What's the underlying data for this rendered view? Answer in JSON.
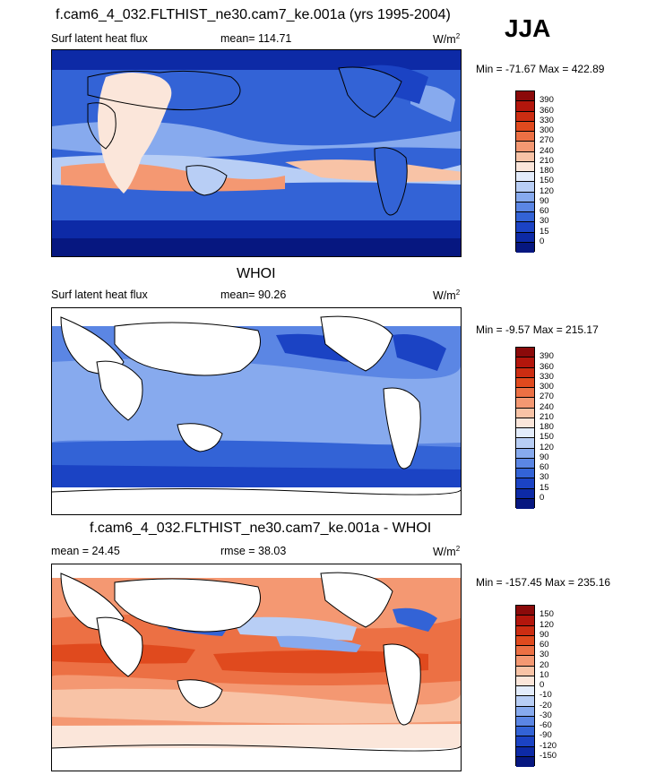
{
  "season": "JJA",
  "panels": [
    {
      "title": "f.cam6_4_032.FLTHIST_ne30.cam7_ke.001a (yrs 1995-2004)",
      "left_label": "Surf latent heat flux",
      "stat_label": "mean= 114.71",
      "units": "W/m",
      "units_sup": "2",
      "minmax": "Min = -71.67 Max = 422.89",
      "colorbar": {
        "levels": [
          "390",
          "360",
          "330",
          "300",
          "270",
          "240",
          "210",
          "180",
          "150",
          "120",
          "90",
          "60",
          "30",
          "15",
          "0"
        ],
        "colors": [
          "#8b0a0a",
          "#b3160c",
          "#cc2d12",
          "#e04a1e",
          "#ec7044",
          "#f49872",
          "#f8c3a6",
          "#fbe6da",
          "#e3ecfb",
          "#b8cef5",
          "#87aaee",
          "#5b86e4",
          "#3363d6",
          "#1b43c4",
          "#0d2aa6",
          "#061780"
        ]
      }
    },
    {
      "title": "WHOI",
      "left_label": "Surf latent heat flux",
      "stat_label": "mean=  90.26",
      "units": "W/m",
      "units_sup": "2",
      "minmax": "Min =  -9.57 Max = 215.17",
      "colorbar": {
        "levels": [
          "390",
          "360",
          "330",
          "300",
          "270",
          "240",
          "210",
          "180",
          "150",
          "120",
          "90",
          "60",
          "30",
          "15",
          "0"
        ],
        "colors": [
          "#8b0a0a",
          "#b3160c",
          "#cc2d12",
          "#e04a1e",
          "#ec7044",
          "#f49872",
          "#f8c3a6",
          "#fbe6da",
          "#e3ecfb",
          "#b8cef5",
          "#87aaee",
          "#5b86e4",
          "#3363d6",
          "#1b43c4",
          "#0d2aa6",
          "#061780"
        ]
      }
    },
    {
      "title": "f.cam6_4_032.FLTHIST_ne30.cam7_ke.001a - WHOI",
      "left_label": "mean =  24.45",
      "stat_label": "rmse =  38.03",
      "units": "W/m",
      "units_sup": "2",
      "minmax": "Min = -157.45 Max = 235.16",
      "colorbar": {
        "levels": [
          "150",
          "120",
          "90",
          "60",
          "30",
          "20",
          "10",
          "0",
          "-10",
          "-20",
          "-30",
          "-60",
          "-90",
          "-120",
          "-150"
        ],
        "colors": [
          "#8b0a0a",
          "#b3160c",
          "#cc2d12",
          "#e04a1e",
          "#ec7044",
          "#f49872",
          "#f8c3a6",
          "#fbe6da",
          "#e3ecfb",
          "#b8cef5",
          "#87aaee",
          "#5b86e4",
          "#3363d6",
          "#1b43c4",
          "#0d2aa6",
          "#061780"
        ]
      }
    }
  ]
}
